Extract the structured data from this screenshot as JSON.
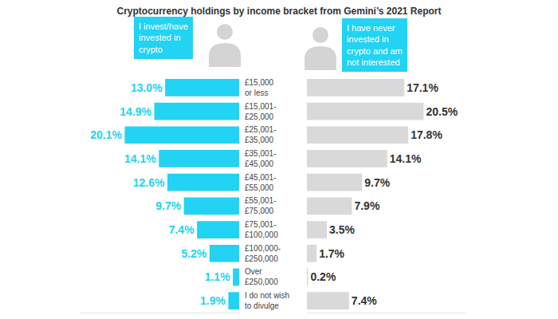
{
  "chart_data": {
    "type": "bar",
    "title": "Cryptocurrency holdings by income bracket from Gemini’s 2021 Report",
    "orientation": "horizontal",
    "categories": [
      "£15,000\nor less",
      "£15,001-\n£25,000",
      "£25,001-\n£35,000",
      "£35,001-\n£45,000",
      "£45,001-\n£55,000",
      "£55,001-\n£75,000",
      "£75,001-\n£100,000",
      "£100,000-\n£250,000",
      "Over\n£250,000",
      "I do not wish\nto divulge"
    ],
    "series": [
      {
        "name": "I invest/have\ninvested in\ncrypto",
        "color": "#22d3f3",
        "values": [
          13.0,
          14.9,
          20.1,
          14.1,
          12.6,
          9.7,
          7.4,
          5.2,
          1.1,
          1.9
        ],
        "value_labels": [
          "13.0%",
          "14.9%",
          "20.1%",
          "14.1%",
          "12.6%",
          "9.7%",
          "7.4%",
          "5.2%",
          "1.1%",
          "1.9%"
        ]
      },
      {
        "name": "I have never\ninvested in\ncrypto and am\nnot interested",
        "color": "#d9d9d9",
        "values": [
          17.1,
          20.5,
          17.8,
          14.1,
          9.7,
          7.9,
          3.5,
          1.7,
          0.2,
          7.4
        ],
        "value_labels": [
          "17.1%",
          "20.5%",
          "17.8%",
          "14.1%",
          "9.7%",
          "7.9%",
          "3.5%",
          "1.7%",
          "0.2%",
          "7.4%"
        ]
      }
    ],
    "xlim": [
      0,
      28
    ],
    "data_labels": true,
    "tick_labels": "y",
    "grid": false
  }
}
